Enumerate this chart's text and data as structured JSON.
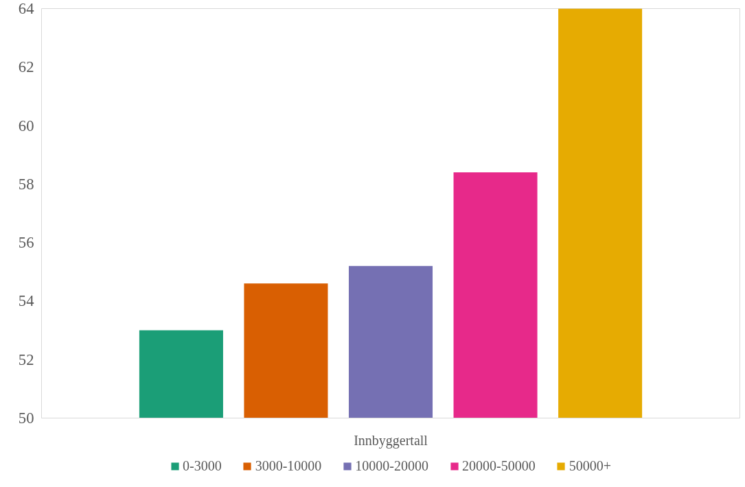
{
  "chart_data": {
    "type": "bar",
    "categories": [
      "Innbyggertall"
    ],
    "series": [
      {
        "name": "0-3000",
        "color": "#1b9e77",
        "values": [
          53.0
        ]
      },
      {
        "name": "3000-10000",
        "color": "#d95f02",
        "values": [
          54.6
        ]
      },
      {
        "name": "10000-20000",
        "color": "#7570b3",
        "values": [
          55.2
        ]
      },
      {
        "name": "20000-50000",
        "color": "#e7298a",
        "values": [
          58.4
        ]
      },
      {
        "name": "50000+",
        "color": "#e6ab02",
        "values": [
          64.0
        ]
      }
    ],
    "ylim": [
      50,
      64
    ],
    "yticks": [
      50,
      52,
      54,
      56,
      58,
      60,
      62,
      64
    ],
    "grid": false,
    "legend": "bottom",
    "tick_labels": true
  }
}
